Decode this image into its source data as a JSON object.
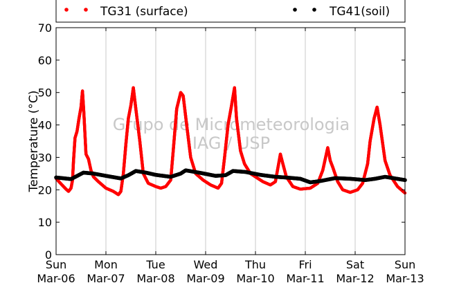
{
  "chart_data": {
    "type": "scatter",
    "ylabel": "Temperature (°C)",
    "ylim": [
      0,
      70
    ],
    "yticks": [
      "0",
      "10",
      "20",
      "30",
      "40",
      "50",
      "60",
      "70"
    ],
    "xlim": [
      0,
      7
    ],
    "x_units": "days from Sun Mar-06 00:00",
    "xticks": [
      {
        "day": "Sun",
        "date": "Mar-06"
      },
      {
        "day": "Mon",
        "date": "Mar-07"
      },
      {
        "day": "Tue",
        "date": "Mar-08"
      },
      {
        "day": "Wed",
        "date": "Mar-09"
      },
      {
        "day": "Thu",
        "date": "Mar-10"
      },
      {
        "day": "Fri",
        "date": "Mar-11"
      },
      {
        "day": "Sat",
        "date": "Mar-12"
      },
      {
        "day": "Sun",
        "date": "Mar-13"
      }
    ],
    "grid": "vertical",
    "legend_placement": "top",
    "watermark": [
      "Grupo de Micrometeorologia",
      "IAG / USP"
    ],
    "series": [
      {
        "name": "TG31 (surface)",
        "color": "#ff0000",
        "points": [
          [
            0.0,
            23.5
          ],
          [
            0.1,
            21.8
          ],
          [
            0.2,
            20.2
          ],
          [
            0.25,
            19.5
          ],
          [
            0.3,
            20.5
          ],
          [
            0.33,
            23
          ],
          [
            0.35,
            29
          ],
          [
            0.38,
            36
          ],
          [
            0.42,
            38
          ],
          [
            0.46,
            42
          ],
          [
            0.5,
            45.5
          ],
          [
            0.53,
            50.5
          ],
          [
            0.56,
            43
          ],
          [
            0.6,
            31
          ],
          [
            0.65,
            29.5
          ],
          [
            0.7,
            26
          ],
          [
            0.75,
            24
          ],
          [
            0.85,
            22.5
          ],
          [
            1.0,
            20.5
          ],
          [
            1.15,
            19.5
          ],
          [
            1.25,
            18.5
          ],
          [
            1.3,
            19.5
          ],
          [
            1.35,
            25
          ],
          [
            1.4,
            34
          ],
          [
            1.45,
            42
          ],
          [
            1.5,
            46
          ],
          [
            1.55,
            51.5
          ],
          [
            1.6,
            45
          ],
          [
            1.68,
            35
          ],
          [
            1.75,
            25
          ],
          [
            1.85,
            22
          ],
          [
            2.0,
            21
          ],
          [
            2.1,
            20.5
          ],
          [
            2.2,
            21
          ],
          [
            2.3,
            23
          ],
          [
            2.35,
            32
          ],
          [
            2.42,
            45
          ],
          [
            2.5,
            50
          ],
          [
            2.55,
            49
          ],
          [
            2.62,
            40
          ],
          [
            2.7,
            30
          ],
          [
            2.8,
            25
          ],
          [
            2.95,
            23
          ],
          [
            3.1,
            21.5
          ],
          [
            3.25,
            20.5
          ],
          [
            3.32,
            22
          ],
          [
            3.38,
            30
          ],
          [
            3.45,
            40
          ],
          [
            3.52,
            46
          ],
          [
            3.58,
            51.5
          ],
          [
            3.62,
            42
          ],
          [
            3.7,
            32
          ],
          [
            3.78,
            28
          ],
          [
            3.9,
            25
          ],
          [
            4.0,
            24
          ],
          [
            4.15,
            22.5
          ],
          [
            4.3,
            21.5
          ],
          [
            4.4,
            22.5
          ],
          [
            4.5,
            31
          ],
          [
            4.55,
            28
          ],
          [
            4.62,
            24
          ],
          [
            4.75,
            21
          ],
          [
            4.9,
            20.2
          ],
          [
            5.1,
            20.5
          ],
          [
            5.25,
            22
          ],
          [
            5.35,
            26
          ],
          [
            5.45,
            33
          ],
          [
            5.5,
            29
          ],
          [
            5.55,
            27
          ],
          [
            5.65,
            22.5
          ],
          [
            5.75,
            20
          ],
          [
            5.9,
            19.2
          ],
          [
            6.05,
            20
          ],
          [
            6.15,
            22
          ],
          [
            6.25,
            28
          ],
          [
            6.3,
            35
          ],
          [
            6.38,
            42
          ],
          [
            6.44,
            45.5
          ],
          [
            6.5,
            40
          ],
          [
            6.6,
            29
          ],
          [
            6.7,
            24.5
          ],
          [
            6.85,
            21
          ],
          [
            7.0,
            19
          ]
        ]
      },
      {
        "name": "TG41(soil)",
        "color": "#000000",
        "points": [
          [
            0.0,
            23.8
          ],
          [
            0.3,
            23.3
          ],
          [
            0.45,
            24.5
          ],
          [
            0.55,
            25.3
          ],
          [
            0.75,
            25.0
          ],
          [
            1.0,
            24.3
          ],
          [
            1.3,
            23.5
          ],
          [
            1.45,
            24.5
          ],
          [
            1.6,
            25.8
          ],
          [
            1.8,
            25.3
          ],
          [
            2.0,
            24.6
          ],
          [
            2.3,
            24.0
          ],
          [
            2.5,
            25.0
          ],
          [
            2.6,
            26.0
          ],
          [
            2.9,
            25.2
          ],
          [
            3.2,
            24.3
          ],
          [
            3.4,
            24.5
          ],
          [
            3.55,
            25.8
          ],
          [
            3.8,
            25.5
          ],
          [
            4.1,
            24.6
          ],
          [
            4.4,
            24.0
          ],
          [
            4.6,
            23.8
          ],
          [
            4.9,
            23.4
          ],
          [
            5.1,
            22.3
          ],
          [
            5.3,
            22.7
          ],
          [
            5.6,
            23.6
          ],
          [
            5.9,
            23.4
          ],
          [
            6.2,
            23.0
          ],
          [
            6.4,
            23.4
          ],
          [
            6.6,
            24.0
          ],
          [
            6.8,
            23.5
          ],
          [
            7.0,
            23.0
          ]
        ]
      }
    ]
  }
}
